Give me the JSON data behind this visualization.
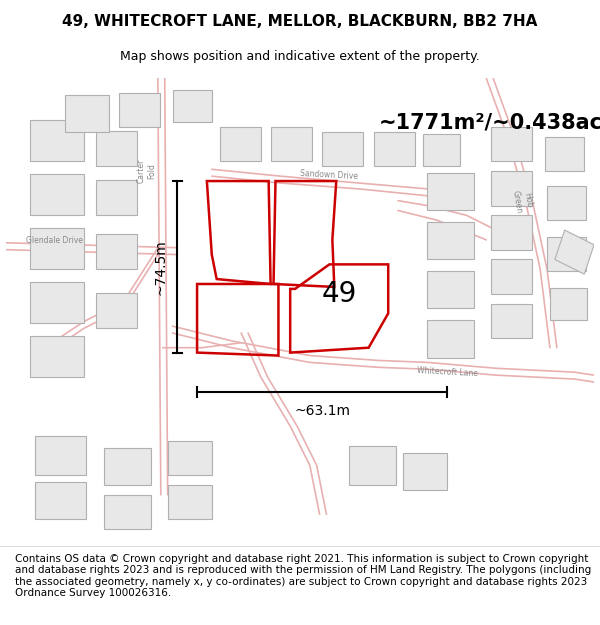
{
  "title_line1": "49, WHITECROFT LANE, MELLOR, BLACKBURN, BB2 7HA",
  "title_line2": "Map shows position and indicative extent of the property.",
  "footer": "Contains OS data © Crown copyright and database right 2021. This information is subject to Crown copyright and database rights 2023 and is reproduced with the permission of HM Land Registry. The polygons (including the associated geometry, namely x, y co-ordinates) are subject to Crown copyright and database rights 2023 Ordnance Survey 100026316.",
  "area_label": "~1771m²/~0.438ac.",
  "width_label": "~63.1m",
  "height_label": "~74.5m",
  "plot_number": "49",
  "map_bg": "#ffffff",
  "building_stroke": "#b0b0b0",
  "building_fill": "#e8e8e8",
  "highlight_color": "#cc0000",
  "road_stroke": "#e8b0b0",
  "road_fill": "#f8f0f0",
  "title_fontsize": 11,
  "subtitle_fontsize": 9,
  "footer_fontsize": 7.5,
  "area_fontsize": 15,
  "measure_fontsize": 10,
  "plot_label_fontsize": 20
}
